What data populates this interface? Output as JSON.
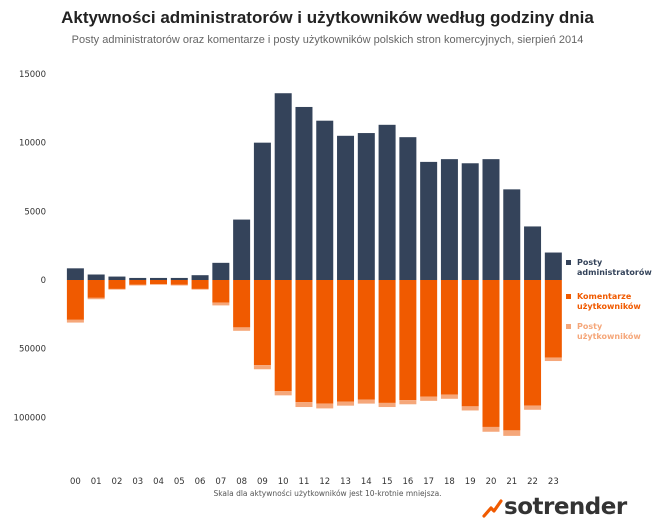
{
  "header": {
    "title": "Aktywności administratorów i użytkowników według godziny dnia",
    "subtitle": "Posty administratorów oraz komentarze i posty użytkowników polskich stron komercyjnych, sierpień 2014"
  },
  "chart_data": {
    "type": "bar",
    "stacked": true,
    "categories": [
      "00",
      "01",
      "02",
      "03",
      "04",
      "05",
      "06",
      "07",
      "08",
      "09",
      "10",
      "11",
      "12",
      "13",
      "14",
      "15",
      "16",
      "17",
      "18",
      "19",
      "20",
      "21",
      "22",
      "23"
    ],
    "y_ticks_top": [
      "15000",
      "10000",
      "5000",
      "0"
    ],
    "y_ticks_bottom": [
      "50000",
      "100000"
    ],
    "scale_top_max": 15000,
    "scale_bottom_max": 150000,
    "series": [
      {
        "name": "Posty administratorów",
        "color": "#34435a",
        "direction": "up",
        "values": [
          850,
          400,
          250,
          150,
          150,
          150,
          350,
          1250,
          4400,
          10000,
          13600,
          12600,
          11600,
          10500,
          10700,
          11300,
          10400,
          8600,
          8800,
          8500,
          8800,
          6600,
          3900,
          2000
        ]
      },
      {
        "name": "Komentarze użytkowników",
        "color": "#f05a00",
        "direction": "down",
        "values": [
          29000,
          13000,
          6500,
          3500,
          3000,
          3500,
          6500,
          16500,
          34500,
          62000,
          81000,
          89000,
          90000,
          88500,
          87000,
          89500,
          87500,
          85000,
          83500,
          92000,
          107000,
          109500,
          91500,
          56500
        ]
      },
      {
        "name": "Posty użytkowników",
        "color": "#f5a77a",
        "direction": "down",
        "values": [
          2000,
          1000,
          500,
          500,
          500,
          500,
          500,
          2000,
          2500,
          3000,
          3000,
          3500,
          3500,
          3000,
          3000,
          3000,
          3000,
          3000,
          3000,
          3000,
          3500,
          4000,
          3000,
          2500
        ]
      }
    ],
    "legend_lines": [
      [
        "Posty",
        "administratorów"
      ],
      [
        "Komentarze",
        "użytkowników"
      ],
      [
        "Posty",
        "użytkowników"
      ]
    ],
    "legend_position": "right"
  },
  "footnote": "Skala dla aktywności użytkowników jest 10-krotnie mniejsza.",
  "brand": {
    "logo_text": "sotrender",
    "accent_color": "#f05a00"
  }
}
